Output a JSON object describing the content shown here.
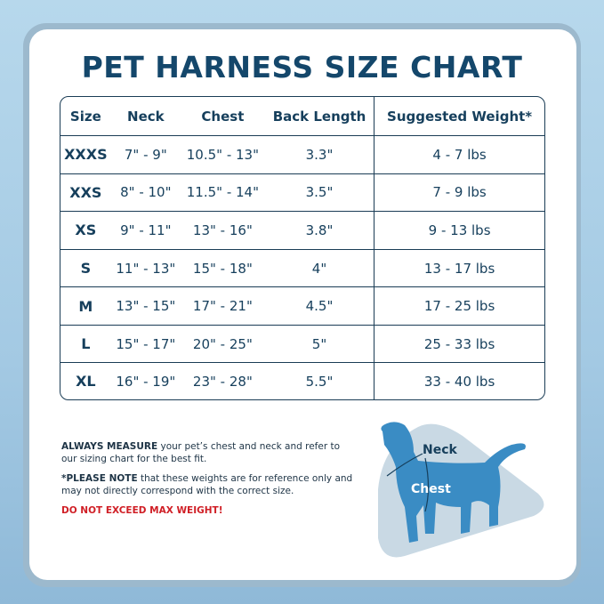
{
  "title": "PET HARNESS SIZE CHART",
  "table": {
    "headers": [
      "Size",
      "Neck",
      "Chest",
      "Back Length",
      "Suggested Weight*"
    ],
    "rows": [
      [
        "XXXS",
        "7\" - 9\"",
        "10.5\" - 13\"",
        "3.3\"",
        "4 - 7 lbs"
      ],
      [
        "XXS",
        "8\" - 10\"",
        "11.5\" - 14\"",
        "3.5\"",
        "7 - 9 lbs"
      ],
      [
        "XS",
        "9\" - 11\"",
        "13\" - 16\"",
        "3.8\"",
        "9 - 13 lbs"
      ],
      [
        "S",
        "11\" - 13\"",
        "15\" - 18\"",
        "4\"",
        "13 - 17 lbs"
      ],
      [
        "M",
        "13\" - 15\"",
        "17\" - 21\"",
        "4.5\"",
        "17 - 25 lbs"
      ],
      [
        "L",
        "15\" - 17\"",
        "20\" - 25\"",
        "5\"",
        "25 - 33 lbs"
      ],
      [
        "XL",
        "16\" - 19\"",
        "23\" - 28\"",
        "5.5\"",
        "33 - 40 lbs"
      ]
    ]
  },
  "notes": {
    "measure_bold": "ALWAYS MEASURE",
    "measure_text": " your pet’s chest and neck and refer to our sizing chart for the best fit.",
    "note_bold": "*PLEASE NOTE",
    "note_text": " that these weights are for reference only and may not directly correspond with the correct size.",
    "warning": "DO NOT EXCEED MAX WEIGHT!"
  },
  "diagram": {
    "neck_label": "Neck",
    "chest_label": "Chest"
  },
  "colors": {
    "navy": "#14476b",
    "warning": "#d01f26",
    "dog": "#3a8cc4",
    "triangle": "#c9d9e4"
  }
}
